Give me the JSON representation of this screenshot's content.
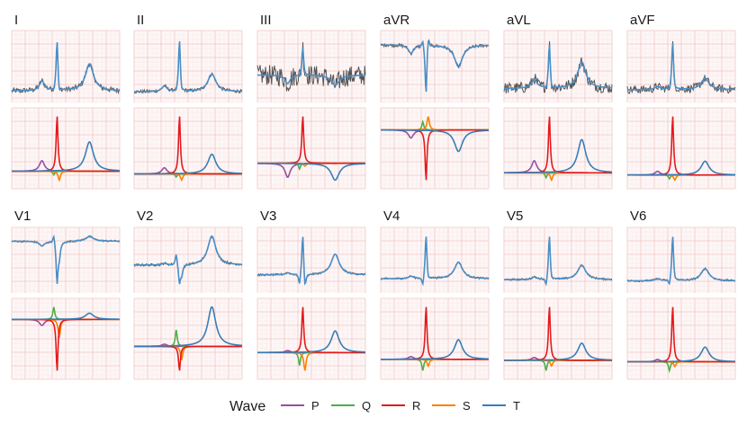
{
  "chart_data": {
    "type": "line",
    "title": "",
    "xlabel": "",
    "ylabel": "",
    "grid": true,
    "legend_position": "bottom",
    "legend": {
      "title": "Wave",
      "entries": [
        {
          "name": "P",
          "color": "#984ea3"
        },
        {
          "name": "Q",
          "color": "#4daf4a"
        },
        {
          "name": "R",
          "color": "#e41a1c"
        },
        {
          "name": "S",
          "color": "#ff7f00"
        },
        {
          "name": "T",
          "color": "#377eb8"
        }
      ]
    },
    "colors": {
      "raw_signal": "#555555",
      "fitted_signal": "#4a8ec6",
      "grid_major": "#f2c4c4",
      "grid_minor": "#fbe6e6",
      "panel_background": "#fdf7f7"
    },
    "x_range": [
      0,
      1
    ],
    "components": [
      "P",
      "Q",
      "R",
      "S",
      "T"
    ],
    "component_centers": {
      "P": 0.28,
      "Q": 0.39,
      "R": 0.42,
      "S": 0.44,
      "T": 0.72
    },
    "component_widths": {
      "P": 0.028,
      "Q": 0.01,
      "R": 0.01,
      "S": 0.012,
      "T": 0.045
    },
    "leads": [
      {
        "name": "I",
        "amplitudes": {
          "P": 0.18,
          "Q": -0.06,
          "R": 0.95,
          "S": -0.15,
          "T": 0.5
        },
        "baseline": 0.0,
        "noise": 0.05
      },
      {
        "name": "II",
        "amplitudes": {
          "P": 0.1,
          "Q": -0.05,
          "R": 0.95,
          "S": -0.1,
          "T": 0.32
        },
        "baseline": 0.0,
        "noise": 0.03
      },
      {
        "name": "III",
        "amplitudes": {
          "P": -0.25,
          "Q": -0.1,
          "R": 0.85,
          "S": -0.05,
          "T": -0.3
        },
        "baseline": 0.15,
        "noise": 0.3
      },
      {
        "name": "aVR",
        "amplitudes": {
          "P": -0.15,
          "Q": 0.15,
          "R": -0.95,
          "S": 0.25,
          "T": -0.4
        },
        "baseline": 0.75,
        "noise": 0.03
      },
      {
        "name": "aVL",
        "amplitudes": {
          "P": 0.2,
          "Q": -0.08,
          "R": 0.95,
          "S": -0.12,
          "T": 0.55
        },
        "baseline": 0.0,
        "noise": 0.12
      },
      {
        "name": "aVF",
        "amplitudes": {
          "P": 0.06,
          "Q": -0.06,
          "R": 0.95,
          "S": -0.08,
          "T": 0.22
        },
        "baseline": 0.0,
        "noise": 0.08
      },
      {
        "name": "V1",
        "amplitudes": {
          "P": -0.1,
          "Q": 0.2,
          "R": -0.85,
          "S": -0.3,
          "T": 0.1
        },
        "baseline": 0.15,
        "noise": 0.02
      },
      {
        "name": "V2",
        "amplitudes": {
          "P": 0.04,
          "Q": 0.3,
          "R": -0.45,
          "S": -0.25,
          "T": 0.72
        },
        "baseline": 0.0,
        "noise": 0.03
      },
      {
        "name": "V3",
        "amplitudes": {
          "P": 0.04,
          "Q": -0.25,
          "R": 0.9,
          "S": -0.35,
          "T": 0.42
        },
        "baseline": 0.0,
        "noise": 0.02
      },
      {
        "name": "V4",
        "amplitudes": {
          "P": 0.05,
          "Q": -0.2,
          "R": 0.95,
          "S": -0.12,
          "T": 0.35
        },
        "baseline": 0.0,
        "noise": 0.02
      },
      {
        "name": "V5",
        "amplitudes": {
          "P": 0.05,
          "Q": -0.18,
          "R": 0.95,
          "S": -0.1,
          "T": 0.3
        },
        "baseline": 0.0,
        "noise": 0.02
      },
      {
        "name": "V6",
        "amplitudes": {
          "P": 0.04,
          "Q": -0.15,
          "R": 0.95,
          "S": -0.08,
          "T": 0.25
        },
        "baseline": 0.0,
        "noise": 0.02
      }
    ]
  }
}
